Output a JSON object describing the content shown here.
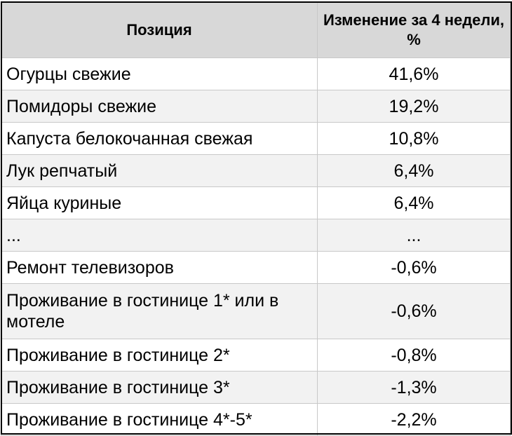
{
  "table": {
    "headers": {
      "position": "Позиция",
      "change": "Изменение за 4 недели, %"
    },
    "rows": [
      {
        "name": "Огурцы свежие",
        "value": "41,6%"
      },
      {
        "name": "Помидоры свежие",
        "value": "19,2%"
      },
      {
        "name": "Капуста белокочанная свежая",
        "value": "10,8%"
      },
      {
        "name": "Лук репчатый",
        "value": "6,4%"
      },
      {
        "name": "Яйца куриные",
        "value": "6,4%"
      },
      {
        "name": "...",
        "value": "..."
      },
      {
        "name": "Ремонт телевизоров",
        "value": "-0,6%"
      },
      {
        "name": "Проживание в гостинице 1* или в мотеле",
        "value": "-0,6%"
      },
      {
        "name": "Проживание в гостинице 2*",
        "value": "-0,8%"
      },
      {
        "name": "Проживание в гостинице 3*",
        "value": "-1,3%"
      },
      {
        "name": "Проживание в гостинице 4*-5*",
        "value": "-2,2%"
      }
    ]
  }
}
